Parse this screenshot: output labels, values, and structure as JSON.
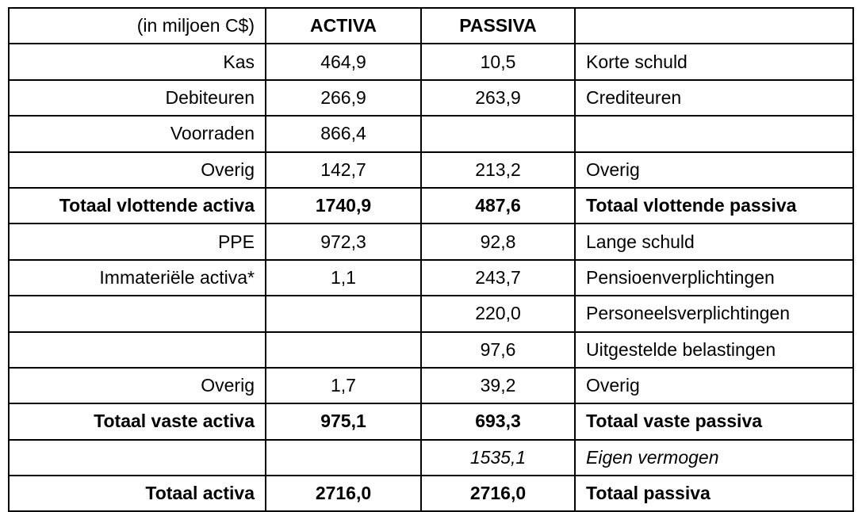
{
  "header": {
    "unit_label": "(in miljoen C$)",
    "activa": "ACTIVA",
    "passiva": "PASSIVA",
    "corner": ""
  },
  "rows": [
    {
      "left": "Kas",
      "activa": "464,9",
      "passiva": "10,5",
      "right": "Korte schuld",
      "emphasis": "normal"
    },
    {
      "left": "Debiteuren",
      "activa": "266,9",
      "passiva": "263,9",
      "right": "Crediteuren",
      "emphasis": "normal"
    },
    {
      "left": "Voorraden",
      "activa": "866,4",
      "passiva": "",
      "right": "",
      "emphasis": "normal"
    },
    {
      "left": "Overig",
      "activa": "142,7",
      "passiva": "213,2",
      "right": "Overig",
      "emphasis": "normal"
    },
    {
      "left": "Totaal vlottende activa",
      "activa": "1740,9",
      "passiva": "487,6",
      "right": "Totaal vlottende passiva",
      "emphasis": "bold"
    },
    {
      "left": "PPE",
      "activa": "972,3",
      "passiva": "92,8",
      "right": "Lange schuld",
      "emphasis": "normal"
    },
    {
      "left": "Immateriële activa*",
      "activa": "1,1",
      "passiva": "243,7",
      "right": "Pensioenverplichtingen",
      "emphasis": "normal"
    },
    {
      "left": "",
      "activa": "",
      "passiva": "220,0",
      "right": "Personeelsverplichtingen",
      "emphasis": "normal"
    },
    {
      "left": "",
      "activa": "",
      "passiva": "97,6",
      "right": "Uitgestelde belastingen",
      "emphasis": "normal"
    },
    {
      "left": "Overig",
      "activa": "1,7",
      "passiva": "39,2",
      "right": "Overig",
      "emphasis": "normal"
    },
    {
      "left": "Totaal vaste activa",
      "activa": "975,1",
      "passiva": "693,3",
      "right": "Totaal vaste passiva",
      "emphasis": "bold"
    },
    {
      "left": "",
      "activa": "",
      "passiva": "1535,1",
      "right": "Eigen vermogen",
      "emphasis": "italic"
    },
    {
      "left": "Totaal activa",
      "activa": "2716,0",
      "passiva": "2716,0",
      "right": "Totaal passiva",
      "emphasis": "bold"
    }
  ],
  "colors": {
    "border": "#000000",
    "text": "#000000",
    "background": "#ffffff"
  }
}
